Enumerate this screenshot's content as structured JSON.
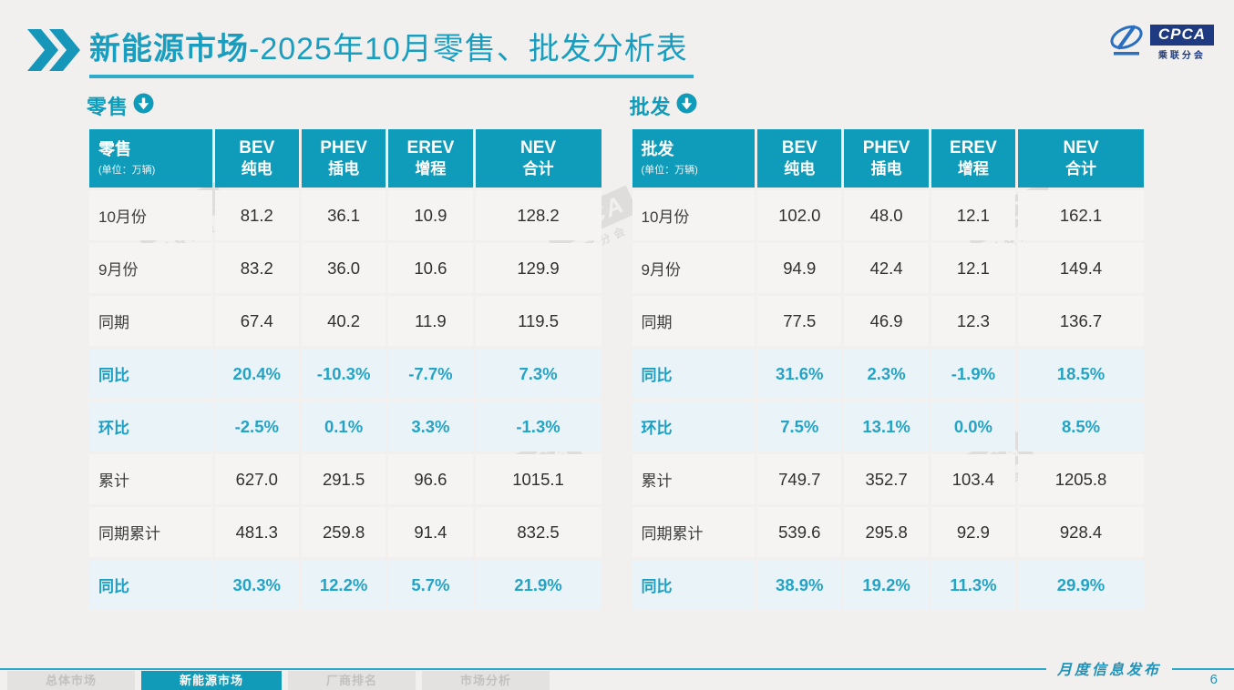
{
  "header": {
    "title_bold": "新能源市场",
    "title_rest": "-2025年10月零售、批发分析表",
    "logo": {
      "text": "CPCA",
      "subtext": "乘联分会"
    }
  },
  "colors": {
    "accent_teal": "#0f9cba",
    "pct_text": "#23a4c6",
    "title_teal": "#1a9ec0",
    "logo_navy": "#1e3a80",
    "pct_row_bg": "#e9f3f8",
    "data_row_bg": "#f5f4f2",
    "page_bg": "#f1f0ee"
  },
  "watermark": {
    "text": "CPCA",
    "subtext": "乘联分会"
  },
  "tables": [
    {
      "id": "retail",
      "section_label": "零售",
      "corner_label": "零售",
      "unit_label": "(单位：万辆)",
      "columns": [
        {
          "en": "BEV",
          "zh": "纯电"
        },
        {
          "en": "PHEV",
          "zh": "插电"
        },
        {
          "en": "EREV",
          "zh": "增程"
        },
        {
          "en": "NEV",
          "zh": "合计"
        }
      ],
      "rows": [
        {
          "label": "10月份",
          "type": "data",
          "values": [
            "81.2",
            "36.1",
            "10.9",
            "128.2"
          ]
        },
        {
          "label": "9月份",
          "type": "data",
          "values": [
            "83.2",
            "36.0",
            "10.6",
            "129.9"
          ]
        },
        {
          "label": "同期",
          "type": "data",
          "values": [
            "67.4",
            "40.2",
            "11.9",
            "119.5"
          ]
        },
        {
          "label": "同比",
          "type": "pct",
          "values": [
            "20.4%",
            "-10.3%",
            "-7.7%",
            "7.3%"
          ]
        },
        {
          "label": "环比",
          "type": "pct",
          "values": [
            "-2.5%",
            "0.1%",
            "3.3%",
            "-1.3%"
          ]
        },
        {
          "label": "累计",
          "type": "data",
          "values": [
            "627.0",
            "291.5",
            "96.6",
            "1015.1"
          ]
        },
        {
          "label": "同期累计",
          "type": "data",
          "values": [
            "481.3",
            "259.8",
            "91.4",
            "832.5"
          ]
        },
        {
          "label": "同比",
          "type": "pct",
          "values": [
            "30.3%",
            "12.2%",
            "5.7%",
            "21.9%"
          ]
        }
      ]
    },
    {
      "id": "wholesale",
      "section_label": "批发",
      "corner_label": "批发",
      "unit_label": "(单位：万辆)",
      "columns": [
        {
          "en": "BEV",
          "zh": "纯电"
        },
        {
          "en": "PHEV",
          "zh": "插电"
        },
        {
          "en": "EREV",
          "zh": "增程"
        },
        {
          "en": "NEV",
          "zh": "合计"
        }
      ],
      "rows": [
        {
          "label": "10月份",
          "type": "data",
          "values": [
            "102.0",
            "48.0",
            "12.1",
            "162.1"
          ]
        },
        {
          "label": "9月份",
          "type": "data",
          "values": [
            "94.9",
            "42.4",
            "12.1",
            "149.4"
          ]
        },
        {
          "label": "同期",
          "type": "data",
          "values": [
            "77.5",
            "46.9",
            "12.3",
            "136.7"
          ]
        },
        {
          "label": "同比",
          "type": "pct",
          "values": [
            "31.6%",
            "2.3%",
            "-1.9%",
            "18.5%"
          ]
        },
        {
          "label": "环比",
          "type": "pct",
          "values": [
            "7.5%",
            "13.1%",
            "0.0%",
            "8.5%"
          ]
        },
        {
          "label": "累计",
          "type": "data",
          "values": [
            "749.7",
            "352.7",
            "103.4",
            "1205.8"
          ]
        },
        {
          "label": "同期累计",
          "type": "data",
          "values": [
            "539.6",
            "295.8",
            "92.9",
            "928.4"
          ]
        },
        {
          "label": "同比",
          "type": "pct",
          "values": [
            "38.9%",
            "19.2%",
            "11.3%",
            "29.9%"
          ]
        }
      ]
    }
  ],
  "footer": {
    "ribbon_label": "月度信息发布",
    "page_number": "6"
  },
  "nav": {
    "tabs": [
      {
        "label": "总体市场",
        "active": false
      },
      {
        "label": "新能源市场",
        "active": true
      },
      {
        "label": "厂商排名",
        "active": false
      },
      {
        "label": "市场分析",
        "active": false
      }
    ]
  }
}
